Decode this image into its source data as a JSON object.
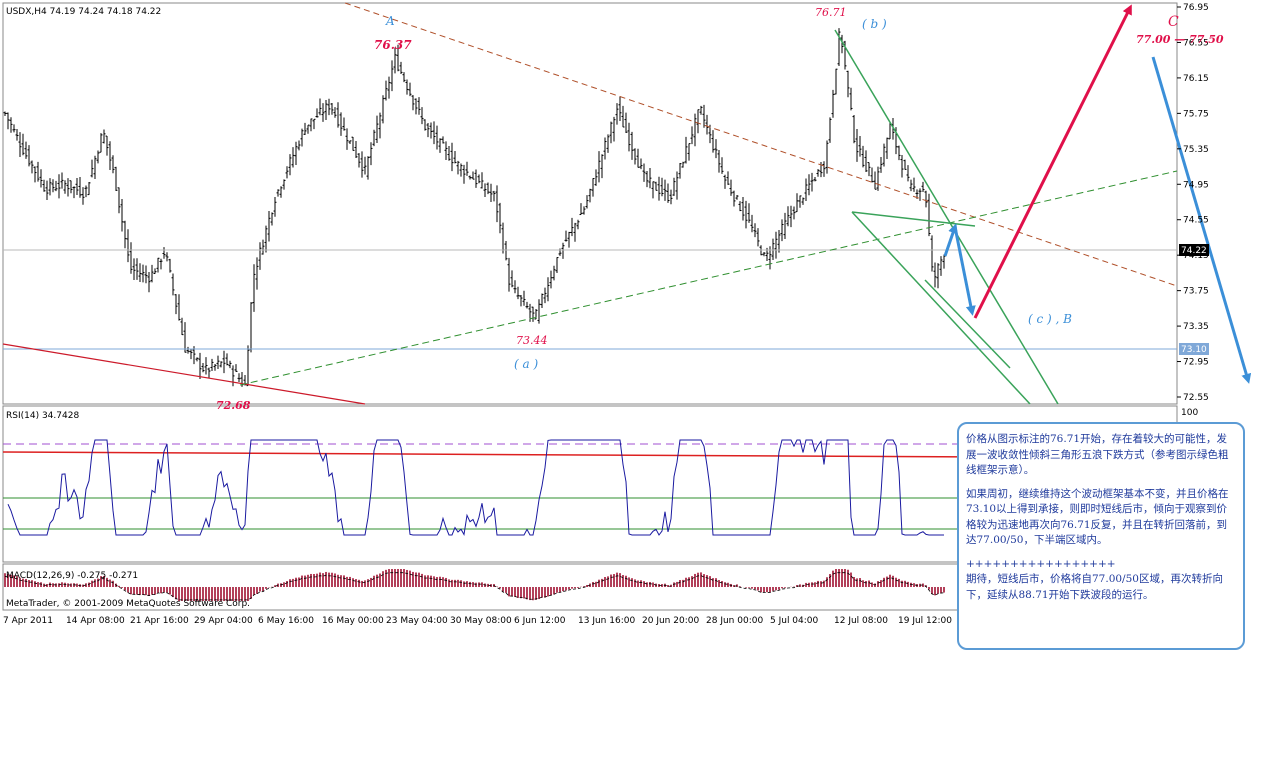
{
  "chart_data": {
    "type": "candlestick",
    "symbol_line": "USDX,H4  74.19 74.24 74.18 74.22",
    "price_axis": {
      "range": [
        72.4,
        77.0
      ],
      "ticks": [
        "76.95",
        "76.55",
        "76.15",
        "75.75",
        "75.35",
        "74.95",
        "74.55",
        "74.15",
        "73.75",
        "73.35",
        "72.95",
        "72.55"
      ],
      "current_price_label": "74.22",
      "support_label": "73.10"
    },
    "x_axis": {
      "labels": [
        "7 Apr 2011",
        "14 Apr 08:00",
        "21 Apr 16:00",
        "29 Apr 04:00",
        "6 May 16:00",
        "16 May 00:00",
        "23 May 04:00",
        "30 May 08:00",
        "6 Jun 12:00",
        "13 Jun 16:00",
        "20 Jun 20:00",
        "28 Jun 00:00",
        "5 Jul 04:00",
        "12 Jul 08:00",
        "19 Jul 12:00"
      ]
    },
    "price_path": [
      {
        "t": 0,
        "p": 75.75
      },
      {
        "t": 20,
        "p": 75.3
      },
      {
        "t": 40,
        "p": 74.9
      },
      {
        "t": 60,
        "p": 74.95
      },
      {
        "t": 80,
        "p": 74.85
      },
      {
        "t": 98,
        "p": 75.55
      },
      {
        "t": 110,
        "p": 75.0
      },
      {
        "t": 125,
        "p": 74.0
      },
      {
        "t": 145,
        "p": 73.9
      },
      {
        "t": 160,
        "p": 74.2
      },
      {
        "t": 180,
        "p": 73.1
      },
      {
        "t": 200,
        "p": 72.85
      },
      {
        "t": 220,
        "p": 72.95
      },
      {
        "t": 240,
        "p": 72.68
      },
      {
        "t": 248,
        "p": 73.9
      },
      {
        "t": 270,
        "p": 74.8
      },
      {
        "t": 300,
        "p": 75.6
      },
      {
        "t": 325,
        "p": 75.85
      },
      {
        "t": 360,
        "p": 75.1
      },
      {
        "t": 390,
        "p": 76.37
      },
      {
        "t": 420,
        "p": 75.6
      },
      {
        "t": 450,
        "p": 75.2
      },
      {
        "t": 490,
        "p": 74.8
      },
      {
        "t": 505,
        "p": 73.8
      },
      {
        "t": 530,
        "p": 73.44
      },
      {
        "t": 555,
        "p": 74.2
      },
      {
        "t": 580,
        "p": 74.7
      },
      {
        "t": 612,
        "p": 75.8
      },
      {
        "t": 640,
        "p": 75.0
      },
      {
        "t": 665,
        "p": 74.8
      },
      {
        "t": 695,
        "p": 75.8
      },
      {
        "t": 720,
        "p": 75.0
      },
      {
        "t": 745,
        "p": 74.5
      },
      {
        "t": 760,
        "p": 74.1
      },
      {
        "t": 790,
        "p": 74.7
      },
      {
        "t": 820,
        "p": 75.2
      },
      {
        "t": 835,
        "p": 76.71
      },
      {
        "t": 850,
        "p": 75.4
      },
      {
        "t": 870,
        "p": 74.95
      },
      {
        "t": 885,
        "p": 75.6
      },
      {
        "t": 905,
        "p": 74.9
      },
      {
        "t": 920,
        "p": 74.9
      },
      {
        "t": 928,
        "p": 73.85
      },
      {
        "t": 940,
        "p": 74.22
      }
    ],
    "annotations": {
      "wave_A": "A",
      "high_A": "76.37",
      "wave_b": "( b )",
      "high_b": "76.71",
      "wave_C": "C",
      "target": "77.00 — 77.50",
      "low_a": "73.44",
      "wave_a": "( a )",
      "wave_cB": "( c ) , B",
      "low_left": "72.68"
    },
    "rsi": {
      "label": "RSI(14) 34.7428",
      "scale_max": "100",
      "levels": [
        70,
        30
      ]
    },
    "macd": {
      "label": "MACD(12,26,9) -0.275 -0.271"
    },
    "copyright": "MetaTrader, © 2001-2009 MetaQuotes Software Corp.",
    "colors": {
      "price_bars": "#000000",
      "rsi_line": "#1a1aa0",
      "macd_hist": "#a01030",
      "wave_red": "#e0104a",
      "wave_blue": "#3b8fd8",
      "channel_green": "#3aa35a",
      "trend_brown": "#b0502a"
    }
  },
  "note": {
    "p1": "价格从图示标注的76.71开始，存在着较大的可能性，发展一波收敛性倾斜三角形五浪下跌方式（参考图示绿色粗线框架示意）。",
    "p2": "如果周初，继续维持这个波动框架基本不变，并且价格在73.10以上得到承接，则即时短线后市，倾向于观察到价格较为迅速地再次向76.71反复，并且在转折回落前，到达77.00/50，下半端区域内。",
    "sep": "+++++++++++++++++",
    "p3": "期待，短线后市，价格将自77.00/50区域，再次转折向下，延续从88.71开始下跌波段的运行。"
  }
}
